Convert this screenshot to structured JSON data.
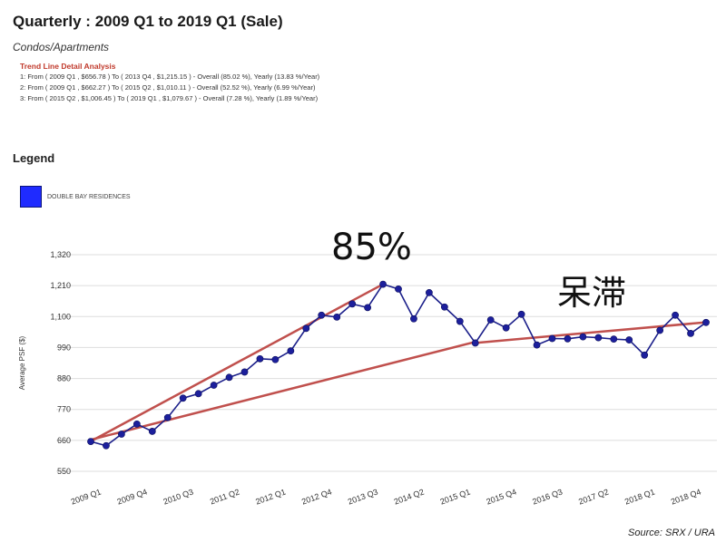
{
  "header": {
    "title": "Quarterly : 2009 Q1 to 2019 Q1 (Sale)",
    "subtitle": "Condos/Apartments"
  },
  "trend": {
    "heading": "Trend Line Detail Analysis",
    "lines": [
      "1: From ( 2009 Q1 , $656.78 ) To ( 2013 Q4 , $1,215.15 ) - Overall (85.02 %), Yearly (13.83 %/Year)",
      "2: From ( 2009 Q1 , $662.27 ) To ( 2015 Q2 , $1,010.11 ) - Overall (52.52 %), Yearly (6.99 %/Year)",
      "3: From ( 2015 Q2 , $1,006.45 ) To ( 2019 Q1 , $1,079.67 ) - Overall (7.28 %), Yearly (1.89 %/Year)"
    ]
  },
  "legend": {
    "title": "Legend",
    "items": [
      {
        "label": "DOUBLE BAY RESIDENCES",
        "color": "#1f2bff"
      }
    ]
  },
  "annotations": {
    "rise": "85%",
    "stagnant": "呆滞"
  },
  "source": "Source: SRX / URA",
  "chart_data": {
    "type": "line",
    "ylabel": "Average PSF ($)",
    "ylim": [
      550,
      1320
    ],
    "yticks": [
      550,
      660,
      770,
      880,
      990,
      1100,
      1210,
      1320
    ],
    "x_tick_labels": [
      "2009 Q1",
      "2009 Q4",
      "2010 Q3",
      "2011 Q2",
      "2012 Q1",
      "2012 Q4",
      "2013 Q3",
      "2014 Q2",
      "2015 Q1",
      "2015 Q4",
      "2016 Q3",
      "2017 Q2",
      "2018 Q1",
      "2018 Q4"
    ],
    "x": [
      "2009 Q1",
      "2009 Q2",
      "2009 Q3",
      "2009 Q4",
      "2010 Q1",
      "2010 Q2",
      "2010 Q3",
      "2010 Q4",
      "2011 Q1",
      "2011 Q2",
      "2011 Q3",
      "2011 Q4",
      "2012 Q1",
      "2012 Q2",
      "2012 Q3",
      "2012 Q4",
      "2013 Q1",
      "2013 Q2",
      "2013 Q3",
      "2013 Q4",
      "2014 Q1",
      "2014 Q2",
      "2014 Q3",
      "2014 Q4",
      "2015 Q1",
      "2015 Q2",
      "2015 Q3",
      "2015 Q4",
      "2016 Q1",
      "2016 Q2",
      "2016 Q3",
      "2016 Q4",
      "2017 Q1",
      "2017 Q2",
      "2017 Q3",
      "2017 Q4",
      "2018 Q1",
      "2018 Q2",
      "2018 Q3",
      "2018 Q4",
      "2019 Q1"
    ],
    "series": [
      {
        "name": "DOUBLE BAY RESIDENCES",
        "color": "#1f2bff",
        "values": [
          656,
          641,
          682,
          718,
          692,
          741,
          810,
          826,
          856,
          884,
          903,
          950,
          947,
          978,
          1058,
          1105,
          1098,
          1145,
          1132,
          1215,
          1198,
          1092,
          1185,
          1134,
          1083,
          1006,
          1088,
          1060,
          1108,
          999,
          1022,
          1021,
          1028,
          1025,
          1020,
          1017,
          963,
          1051,
          1105,
          1040,
          1079
        ]
      }
    ],
    "trend_lines": [
      {
        "from": [
          "2009 Q1",
          656.78
        ],
        "to": [
          "2013 Q4",
          1215.15
        ],
        "color": "#c0504d"
      },
      {
        "from": [
          "2009 Q1",
          662.27
        ],
        "to": [
          "2015 Q2",
          1010.11
        ],
        "color": "#c0504d"
      },
      {
        "from": [
          "2015 Q2",
          1006.45
        ],
        "to": [
          "2019 Q1",
          1079.67
        ],
        "color": "#c0504d"
      }
    ],
    "grid": true,
    "legend_position": "top-left"
  }
}
